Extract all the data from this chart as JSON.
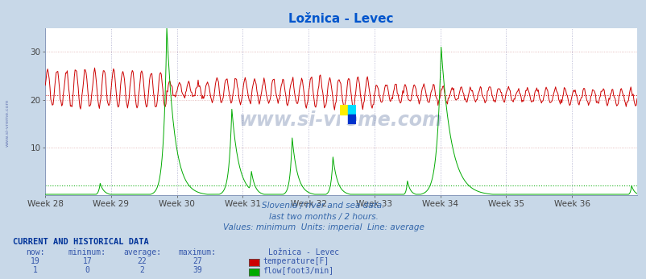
{
  "title": "Ložnica - Levec",
  "title_color": "#0055cc",
  "bg_color": "#c8d8e8",
  "plot_bg_color": "#ffffff",
  "grid_color_h": "#ffaaaa",
  "grid_color_v": "#aaaacc",
  "x_labels": [
    "Week 28",
    "Week 29",
    "Week 30",
    "Week 31",
    "Week 32",
    "Week 33",
    "Week 34",
    "Week 35",
    "Week 36"
  ],
  "x_ticks_pos": [
    0,
    84,
    168,
    252,
    336,
    420,
    504,
    588,
    672
  ],
  "n_points": 756,
  "temp_avg": 21,
  "flow_avg": 2,
  "ylim_top": 35,
  "yticks": [
    10,
    20,
    30
  ],
  "temp_color": "#cc0000",
  "flow_color": "#00aa00",
  "subtitle1": "Slovenia / river and sea data.",
  "subtitle2": "last two months / 2 hours.",
  "subtitle3": "Values: minimum  Units: imperial  Line: average",
  "subtitle_color": "#3366aa",
  "watermark": "www.si-vreme.com",
  "watermark_color": "#1a3a7a",
  "table_header": "CURRENT AND HISTORICAL DATA",
  "table_header_color": "#003399",
  "col_labels": [
    "now:",
    "minimum:",
    "average:",
    "maximum:",
    "Ložnica - Levec"
  ],
  "temp_row": [
    "19",
    "17",
    "22",
    "27"
  ],
  "flow_row": [
    "1",
    "0",
    "2",
    "39"
  ],
  "temp_label": "temperature[F]",
  "flow_label": "flow[foot3/min]",
  "row_color": "#3355aa",
  "spike_centers": [
    70,
    155,
    175,
    238,
    263,
    315,
    367,
    462,
    505,
    748
  ],
  "spike_peaks": [
    2.5,
    35,
    4,
    18,
    5,
    12,
    8,
    3,
    31,
    2
  ],
  "spike_widths": [
    5,
    10,
    4,
    9,
    5,
    7,
    6,
    4,
    13,
    4
  ]
}
